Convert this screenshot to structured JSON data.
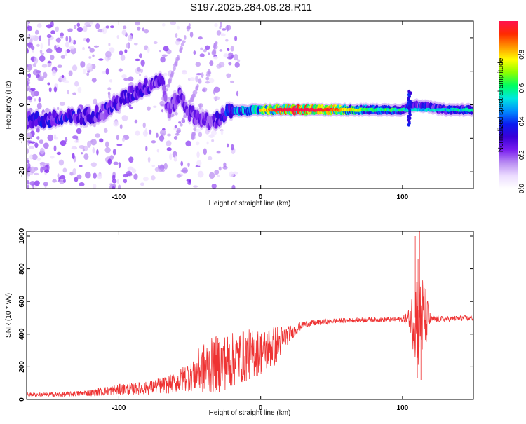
{
  "page_title": "S197.2025.284.08.28.R11",
  "chart_data": [
    {
      "type": "heatmap",
      "name": "spectrogram",
      "xlabel": "Height of straight line (km)",
      "ylabel": "Frequency (Hz)",
      "xlim": [
        -165,
        150
      ],
      "ylim": [
        -25,
        25
      ],
      "xticks": [
        -100,
        0,
        100
      ],
      "yticks": [
        -20,
        -10,
        0,
        10,
        20
      ],
      "colorbar": {
        "label": "Normalized spectral amplitude",
        "range": [
          0,
          1
        ],
        "ticks": [
          "0.0",
          "0.2",
          "0.4",
          "0.6",
          "0.8"
        ],
        "tick_values": [
          0,
          0.2,
          0.4,
          0.6,
          0.8
        ],
        "colors": [
          "#ffffff",
          "#ecdcff",
          "#b98cf2",
          "#7a1ef0",
          "#3a00d8",
          "#0a1cf0",
          "#008cff",
          "#00e8e0",
          "#00ff60",
          "#8cff00",
          "#ffff00",
          "#ff9600",
          "#ff2a00",
          "#ff1250"
        ]
      },
      "ridge_points": [
        {
          "x": -165,
          "y": -4.5,
          "amp": 0.3
        },
        {
          "x": -150,
          "y": -4.5,
          "amp": 0.35
        },
        {
          "x": -140,
          "y": -4.0,
          "amp": 0.35
        },
        {
          "x": -125,
          "y": -3.5,
          "amp": 0.3
        },
        {
          "x": -110,
          "y": -2.0,
          "amp": 0.3
        },
        {
          "x": -100,
          "y": 1.0,
          "amp": 0.3
        },
        {
          "x": -90,
          "y": 3.5,
          "amp": 0.3
        },
        {
          "x": -80,
          "y": 5.5,
          "amp": 0.3
        },
        {
          "x": -70,
          "y": 8.0,
          "amp": 0.25
        },
        {
          "x": -65,
          "y": -2.0,
          "amp": 0.25
        },
        {
          "x": -57,
          "y": 3.0,
          "amp": 0.25
        },
        {
          "x": -50,
          "y": -2.5,
          "amp": 0.25
        },
        {
          "x": -35,
          "y": -5.5,
          "amp": 0.25
        },
        {
          "x": -22,
          "y": -2.0,
          "amp": 0.4
        },
        {
          "x": 0,
          "y": -1.5,
          "amp": 0.6
        },
        {
          "x": 25,
          "y": -1.5,
          "amp": 0.95
        },
        {
          "x": 50,
          "y": -1.5,
          "amp": 0.75
        },
        {
          "x": 75,
          "y": -1.5,
          "amp": 0.45
        },
        {
          "x": 100,
          "y": -1.5,
          "amp": 0.4
        },
        {
          "x": 110,
          "y": 0.0,
          "amp": 0.35
        },
        {
          "x": 130,
          "y": -1.5,
          "amp": 0.35
        },
        {
          "x": 150,
          "y": -1.5,
          "amp": 0.4
        }
      ]
    },
    {
      "type": "line",
      "name": "snr",
      "xlabel": "Height of straight line (km)",
      "ylabel": "SNR (10 * v/v)",
      "xlim": [
        -165,
        150
      ],
      "ylim": [
        0,
        1030
      ],
      "xticks": [
        -100,
        0,
        100
      ],
      "yticks": [
        0,
        200,
        400,
        600,
        800,
        1000
      ],
      "color": "#ee3333",
      "envelope": [
        {
          "x": -165,
          "y": 30,
          "noise": 12
        },
        {
          "x": -140,
          "y": 30,
          "noise": 15
        },
        {
          "x": -120,
          "y": 40,
          "noise": 20
        },
        {
          "x": -100,
          "y": 60,
          "noise": 35
        },
        {
          "x": -80,
          "y": 70,
          "noise": 40
        },
        {
          "x": -60,
          "y": 100,
          "noise": 60
        },
        {
          "x": -50,
          "y": 150,
          "noise": 100
        },
        {
          "x": -40,
          "y": 190,
          "noise": 160
        },
        {
          "x": -30,
          "y": 220,
          "noise": 180
        },
        {
          "x": -20,
          "y": 240,
          "noise": 170
        },
        {
          "x": -10,
          "y": 270,
          "noise": 160
        },
        {
          "x": 0,
          "y": 290,
          "noise": 140
        },
        {
          "x": 10,
          "y": 330,
          "noise": 130
        },
        {
          "x": 20,
          "y": 400,
          "noise": 50
        },
        {
          "x": 30,
          "y": 460,
          "noise": 20
        },
        {
          "x": 50,
          "y": 480,
          "noise": 15
        },
        {
          "x": 80,
          "y": 490,
          "noise": 15
        },
        {
          "x": 100,
          "y": 490,
          "noise": 15
        },
        {
          "x": 105,
          "y": 500,
          "noise": 60
        },
        {
          "x": 110,
          "y": 500,
          "noise": 350
        },
        {
          "x": 115,
          "y": 500,
          "noise": 250
        },
        {
          "x": 120,
          "y": 490,
          "noise": 20
        },
        {
          "x": 150,
          "y": 500,
          "noise": 15
        }
      ],
      "peaks": [
        {
          "x": 109,
          "y": 1000
        },
        {
          "x": 110.5,
          "y": 130
        },
        {
          "x": 112,
          "y": 1030
        },
        {
          "x": 113,
          "y": 120
        },
        {
          "x": 111,
          "y": 860
        }
      ]
    }
  ]
}
